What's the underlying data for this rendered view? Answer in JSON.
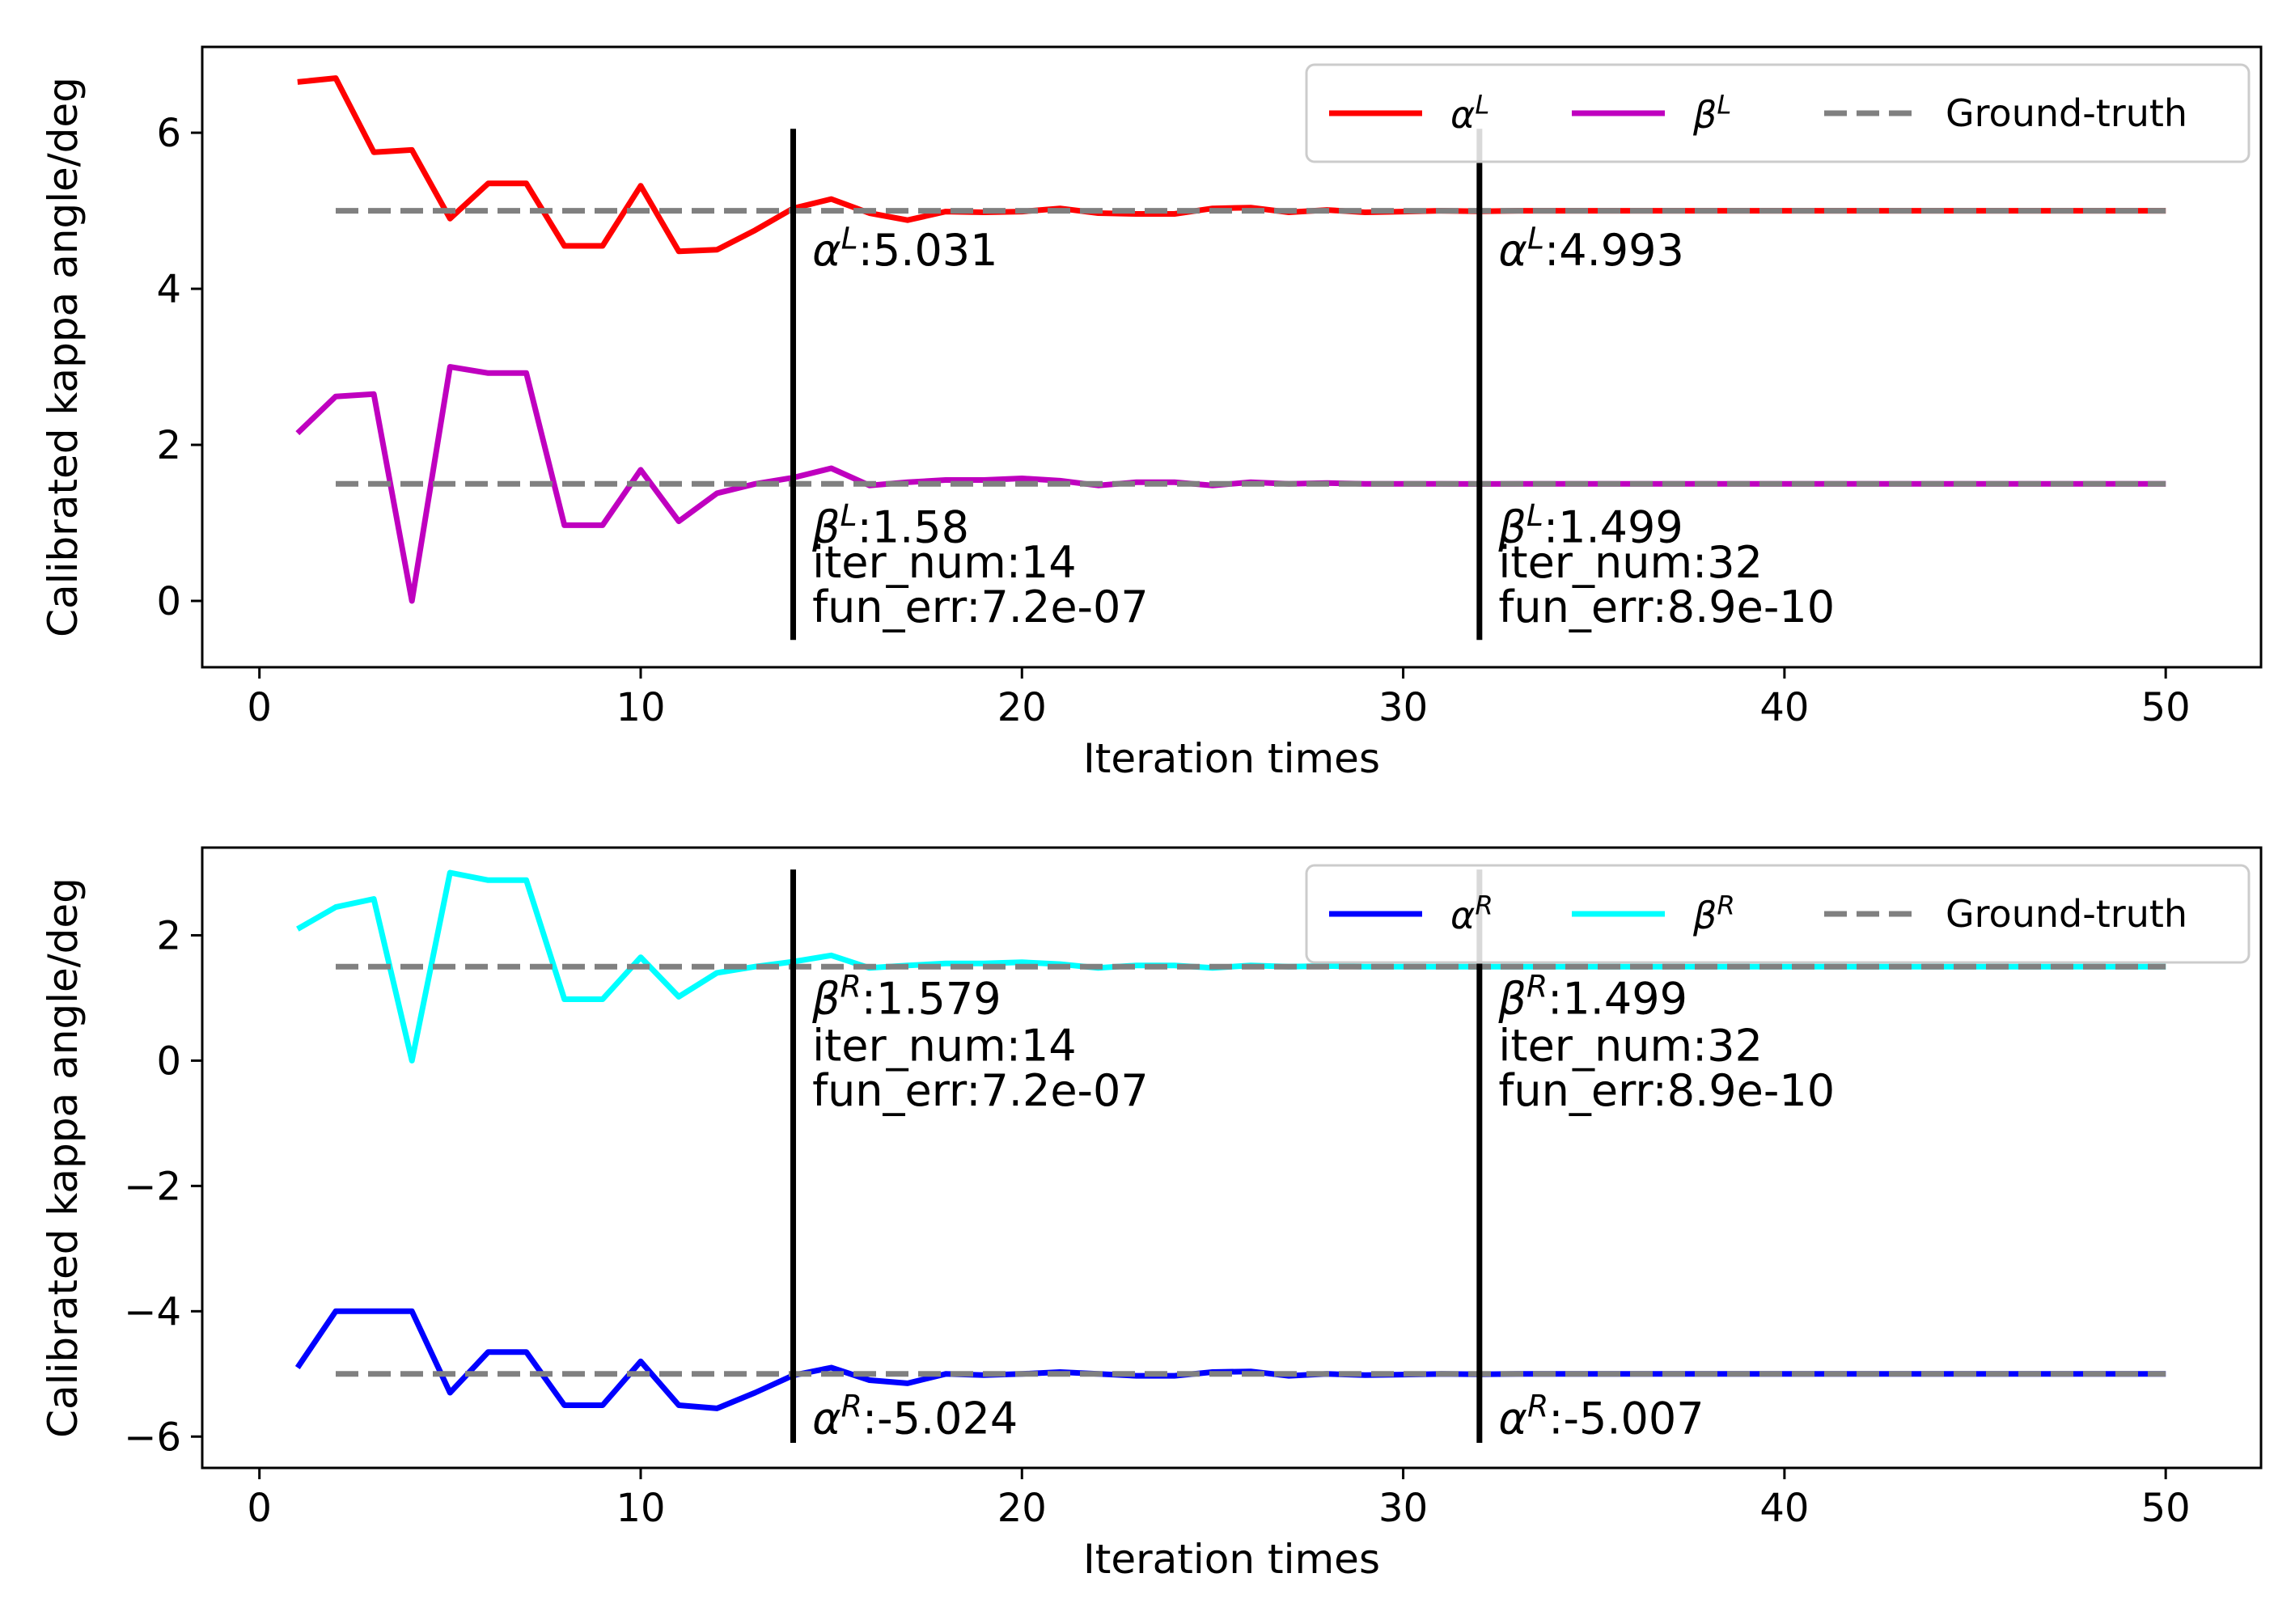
{
  "chart_data": [
    {
      "type": "line",
      "xlabel": "Iteration times",
      "ylabel": "Calibrated kappa angle/deg",
      "xlim": [
        -1.5,
        52.5
      ],
      "ylim": [
        -0.85,
        7.1
      ],
      "xticks": [
        0,
        10,
        20,
        30,
        40,
        50
      ],
      "xtick_labels": [
        "0",
        "10",
        "20",
        "30",
        "40",
        "50"
      ],
      "yticks": [
        0,
        2,
        4,
        6
      ],
      "ytick_labels": [
        "0",
        "2",
        "4",
        "6"
      ],
      "legend_position": "upper-right",
      "series": [
        {
          "name": "α^L",
          "label_base": "α",
          "label_sup": "L",
          "color": "#ff0000",
          "style": "solid",
          "x": [
            1,
            2,
            3,
            4,
            5,
            6,
            7,
            8,
            9,
            10,
            11,
            12,
            13,
            14,
            15,
            16,
            17,
            18,
            19,
            20,
            21,
            22,
            23,
            24,
            25,
            26,
            27,
            28,
            29,
            30,
            31,
            32,
            33,
            34,
            35,
            36,
            37,
            38,
            39,
            40,
            41,
            42,
            43,
            44,
            45,
            46,
            47,
            48,
            49,
            50
          ],
          "values": [
            6.65,
            6.7,
            5.75,
            5.78,
            4.9,
            5.35,
            5.35,
            4.55,
            4.55,
            5.32,
            4.48,
            4.5,
            4.75,
            5.031,
            5.15,
            4.97,
            4.88,
            4.99,
            4.98,
            4.99,
            5.03,
            4.97,
            4.96,
            4.96,
            5.03,
            5.04,
            4.98,
            5.01,
            4.98,
            4.99,
            5.0,
            4.993,
            5.0,
            5.0,
            5.0,
            5.0,
            5.0,
            5.0,
            5.0,
            5.0,
            5.0,
            5.0,
            5.0,
            5.0,
            5.0,
            5.0,
            5.0,
            5.0,
            5.0,
            5.0
          ]
        },
        {
          "name": "β^L",
          "label_base": "β",
          "label_sup": "L",
          "color": "#bf00bf",
          "style": "solid",
          "x": [
            1,
            2,
            3,
            4,
            5,
            6,
            7,
            8,
            9,
            10,
            11,
            12,
            13,
            14,
            15,
            16,
            17,
            18,
            19,
            20,
            21,
            22,
            23,
            24,
            25,
            26,
            27,
            28,
            29,
            30,
            31,
            32,
            33,
            34,
            35,
            36,
            37,
            38,
            39,
            40,
            41,
            42,
            43,
            44,
            45,
            46,
            47,
            48,
            49,
            50
          ],
          "values": [
            2.15,
            2.62,
            2.65,
            0.0,
            3.0,
            2.92,
            2.92,
            0.97,
            0.97,
            1.68,
            1.02,
            1.38,
            1.5,
            1.58,
            1.7,
            1.48,
            1.52,
            1.55,
            1.55,
            1.57,
            1.54,
            1.48,
            1.52,
            1.52,
            1.48,
            1.52,
            1.5,
            1.51,
            1.5,
            1.5,
            1.5,
            1.499,
            1.5,
            1.5,
            1.5,
            1.5,
            1.5,
            1.5,
            1.5,
            1.5,
            1.5,
            1.5,
            1.5,
            1.5,
            1.5,
            1.5,
            1.5,
            1.5,
            1.5,
            1.5
          ]
        },
        {
          "name": "Ground-truth α^L",
          "color": "#808080",
          "style": "dashed",
          "x": [
            2,
            50
          ],
          "values": [
            5.0,
            5.0
          ]
        },
        {
          "name": "Ground-truth β^L",
          "color": "#808080",
          "style": "dashed",
          "x": [
            2,
            50
          ],
          "values": [
            1.5,
            1.5
          ]
        }
      ],
      "vlines": [
        {
          "x": 14,
          "y_range": [
            -0.5,
            6.05
          ]
        },
        {
          "x": 32,
          "y_range": [
            -0.5,
            6.05
          ]
        }
      ],
      "legend": [
        {
          "base": "α",
          "sup": "L",
          "color": "#ff0000",
          "style": "solid"
        },
        {
          "base": "β",
          "sup": "L",
          "color": "#bf00bf",
          "style": "solid"
        },
        {
          "label": "Ground-truth",
          "color": "#808080",
          "style": "dashed"
        }
      ],
      "annotations": [
        {
          "x": 14.5,
          "y": 4.3,
          "base": "α",
          "sup": "L",
          "text": ":5.031"
        },
        {
          "x": 32.5,
          "y": 4.3,
          "base": "α",
          "sup": "L",
          "text": ":4.993"
        },
        {
          "x": 14.5,
          "y": 0.75,
          "base": "β",
          "sup": "L",
          "text": ":1.58"
        },
        {
          "x": 14.5,
          "y": 0.3,
          "text": "iter_num:14"
        },
        {
          "x": 14.5,
          "y": -0.27,
          "text": "fun_err:7.2e-07"
        },
        {
          "x": 32.5,
          "y": 0.75,
          "base": "β",
          "sup": "L",
          "text": ":1.499"
        },
        {
          "x": 32.5,
          "y": 0.3,
          "text": "iter_num:32"
        },
        {
          "x": 32.5,
          "y": -0.27,
          "text": "fun_err:8.9e-10"
        }
      ]
    },
    {
      "type": "line",
      "xlabel": "Iteration times",
      "ylabel": "Calibrated kappa angle/deg",
      "xlim": [
        -1.5,
        52.5
      ],
      "ylim": [
        -6.5,
        3.4
      ],
      "xticks": [
        0,
        10,
        20,
        30,
        40,
        50
      ],
      "xtick_labels": [
        "0",
        "10",
        "20",
        "30",
        "40",
        "50"
      ],
      "yticks": [
        -6,
        -4,
        -2,
        0,
        2
      ],
      "ytick_labels": [
        "−6",
        "−4",
        "−2",
        "0",
        "2"
      ],
      "legend_position": "upper-right",
      "series": [
        {
          "name": "α^R",
          "label_base": "α",
          "label_sup": "R",
          "color": "#0000ff",
          "style": "solid",
          "x": [
            1,
            2,
            3,
            4,
            5,
            6,
            7,
            8,
            9,
            10,
            11,
            12,
            13,
            14,
            15,
            16,
            17,
            18,
            19,
            20,
            21,
            22,
            23,
            24,
            25,
            26,
            27,
            28,
            29,
            30,
            31,
            32,
            33,
            34,
            35,
            36,
            37,
            38,
            39,
            40,
            41,
            42,
            43,
            44,
            45,
            46,
            47,
            48,
            49,
            50
          ],
          "values": [
            -4.9,
            -4.0,
            -4.0,
            -4.0,
            -5.3,
            -4.65,
            -4.65,
            -5.5,
            -5.5,
            -4.8,
            -5.5,
            -5.55,
            -5.3,
            -5.024,
            -4.9,
            -5.1,
            -5.15,
            -5.0,
            -5.02,
            -5.0,
            -4.97,
            -5.0,
            -5.03,
            -5.03,
            -4.97,
            -4.96,
            -5.03,
            -5.0,
            -5.02,
            -5.01,
            -5.0,
            -5.007,
            -5.0,
            -5.0,
            -5.0,
            -5.0,
            -5.0,
            -5.0,
            -5.0,
            -5.0,
            -5.0,
            -5.0,
            -5.0,
            -5.0,
            -5.0,
            -5.0,
            -5.0,
            -5.0,
            -5.0,
            -5.0
          ]
        },
        {
          "name": "β^R",
          "label_base": "β",
          "label_sup": "R",
          "color": "#00ffff",
          "style": "solid",
          "x": [
            1,
            2,
            3,
            4,
            5,
            6,
            7,
            8,
            9,
            10,
            11,
            12,
            13,
            14,
            15,
            16,
            17,
            18,
            19,
            20,
            21,
            22,
            23,
            24,
            25,
            26,
            27,
            28,
            29,
            30,
            31,
            32,
            33,
            34,
            35,
            36,
            37,
            38,
            39,
            40,
            41,
            42,
            43,
            44,
            45,
            46,
            47,
            48,
            49,
            50
          ],
          "values": [
            2.1,
            2.45,
            2.58,
            0.0,
            3.0,
            2.88,
            2.88,
            0.98,
            0.98,
            1.65,
            1.02,
            1.4,
            1.5,
            1.579,
            1.68,
            1.48,
            1.52,
            1.55,
            1.55,
            1.57,
            1.54,
            1.48,
            1.52,
            1.52,
            1.48,
            1.52,
            1.5,
            1.51,
            1.5,
            1.5,
            1.5,
            1.499,
            1.5,
            1.5,
            1.5,
            1.5,
            1.5,
            1.5,
            1.5,
            1.5,
            1.5,
            1.5,
            1.5,
            1.5,
            1.5,
            1.5,
            1.5,
            1.5,
            1.5,
            1.5
          ]
        },
        {
          "name": "Ground-truth β^R",
          "color": "#808080",
          "style": "dashed",
          "x": [
            2,
            50
          ],
          "values": [
            1.5,
            1.5
          ]
        },
        {
          "name": "Ground-truth α^R",
          "color": "#808080",
          "style": "dashed",
          "x": [
            2,
            50
          ],
          "values": [
            -5.0,
            -5.0
          ]
        }
      ],
      "vlines": [
        {
          "x": 14,
          "y_range": [
            -6.1,
            3.05
          ]
        },
        {
          "x": 32,
          "y_range": [
            -6.1,
            3.05
          ]
        }
      ],
      "legend": [
        {
          "base": "α",
          "sup": "R",
          "color": "#0000ff",
          "style": "solid"
        },
        {
          "base": "β",
          "sup": "R",
          "color": "#00ffff",
          "style": "solid"
        },
        {
          "label": "Ground-truth",
          "color": "#808080",
          "style": "dashed"
        }
      ],
      "annotations": [
        {
          "x": 14.5,
          "y": 0.75,
          "base": "β",
          "sup": "R",
          "text": ":1.579"
        },
        {
          "x": 14.5,
          "y": -0.0,
          "text": "iter_num:14"
        },
        {
          "x": 14.5,
          "y": -0.72,
          "text": "fun_err:7.2e-07"
        },
        {
          "x": 32.5,
          "y": 0.75,
          "base": "β",
          "sup": "R",
          "text": ":1.499"
        },
        {
          "x": 32.5,
          "y": -0.0,
          "text": "iter_num:32"
        },
        {
          "x": 32.5,
          "y": -0.72,
          "text": "fun_err:8.9e-10"
        },
        {
          "x": 14.5,
          "y": -5.95,
          "base": "α",
          "sup": "R",
          "text": ":-5.024"
        },
        {
          "x": 32.5,
          "y": -5.95,
          "base": "α",
          "sup": "R",
          "text": ":-5.007"
        }
      ]
    }
  ]
}
